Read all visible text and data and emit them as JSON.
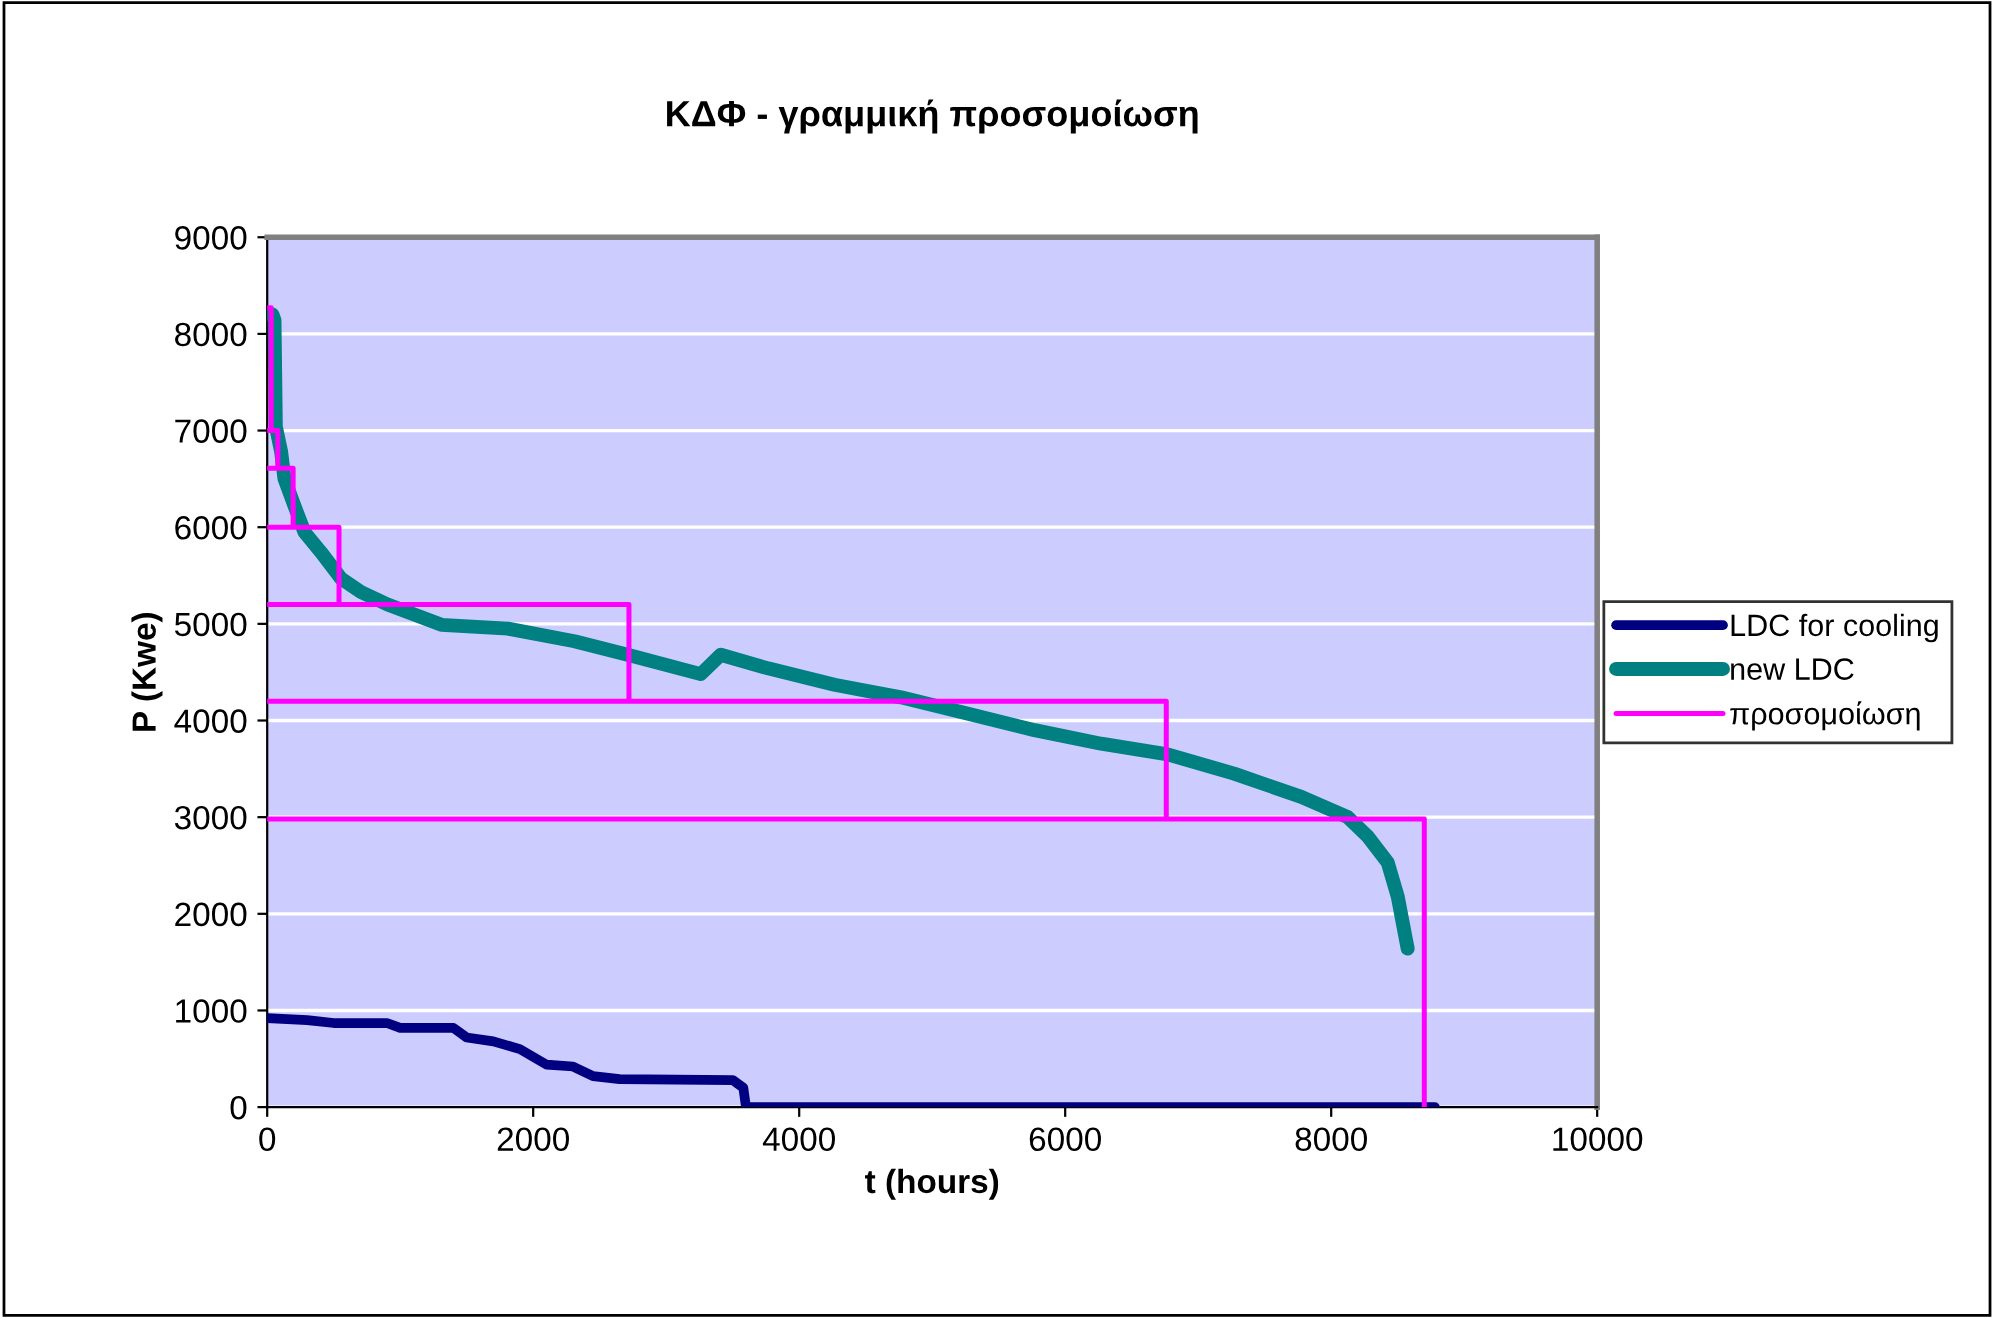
{
  "chart_data": {
    "type": "line",
    "title": "ΚΔΦ - γραμμική προσομοίωση",
    "xlabel": "t (hours)",
    "ylabel": "P (Kwe)",
    "xlim": [
      0,
      10000
    ],
    "xticks": [
      0,
      2000,
      4000,
      6000,
      8000,
      10000
    ],
    "ylim": [
      0,
      9000
    ],
    "yticks": [
      0,
      1000,
      2000,
      3000,
      4000,
      5000,
      6000,
      7000,
      8000,
      9000
    ],
    "grid": "y",
    "legend": "right",
    "marker": "none",
    "line_style": "solid",
    "series": [
      {
        "name": "LDC for cooling",
        "color": "#000080",
        "x": [
          0,
          300,
          500,
          900,
          1000,
          1400,
          1500,
          1700,
          1900,
          2100,
          2300,
          2450,
          2650,
          3500,
          3580,
          3600,
          8780
        ],
        "values": [
          920,
          900,
          870,
          870,
          820,
          820,
          720,
          680,
          600,
          440,
          420,
          320,
          290,
          280,
          200,
          0,
          0
        ]
      },
      {
        "name": "new LDC",
        "color": "#008080",
        "x": [
          40,
          55,
          65,
          105,
          130,
          205,
          280,
          405,
          555,
          705,
          905,
          1310,
          1810,
          2310,
          2710,
          3260,
          3410,
          3765,
          4265,
          4765,
          5270,
          5770,
          6270,
          6770,
          7270,
          7775,
          8125,
          8275,
          8425,
          8500,
          8575
        ],
        "values": [
          8200,
          8140,
          7040,
          6780,
          6500,
          6220,
          5950,
          5740,
          5470,
          5330,
          5200,
          4990,
          4950,
          4820,
          4680,
          4480,
          4680,
          4540,
          4370,
          4240,
          4070,
          3900,
          3760,
          3650,
          3450,
          3210,
          3000,
          2800,
          2530,
          2180,
          1640
        ]
      },
      {
        "name": "προσομοίωση",
        "color": "#ff00ff",
        "x": [
          0,
          30,
          30,
          0,
          80,
          80,
          0,
          195,
          195,
          0,
          540,
          540,
          0,
          2720,
          2720,
          0,
          6760,
          6760,
          0,
          8700,
          8700
        ],
        "values": [
          8270,
          8270,
          7000,
          7000,
          7000,
          6610,
          6610,
          6610,
          6000,
          6000,
          6000,
          5200,
          5200,
          5200,
          4200,
          4200,
          4200,
          2980,
          2980,
          2980,
          0
        ]
      }
    ]
  }
}
